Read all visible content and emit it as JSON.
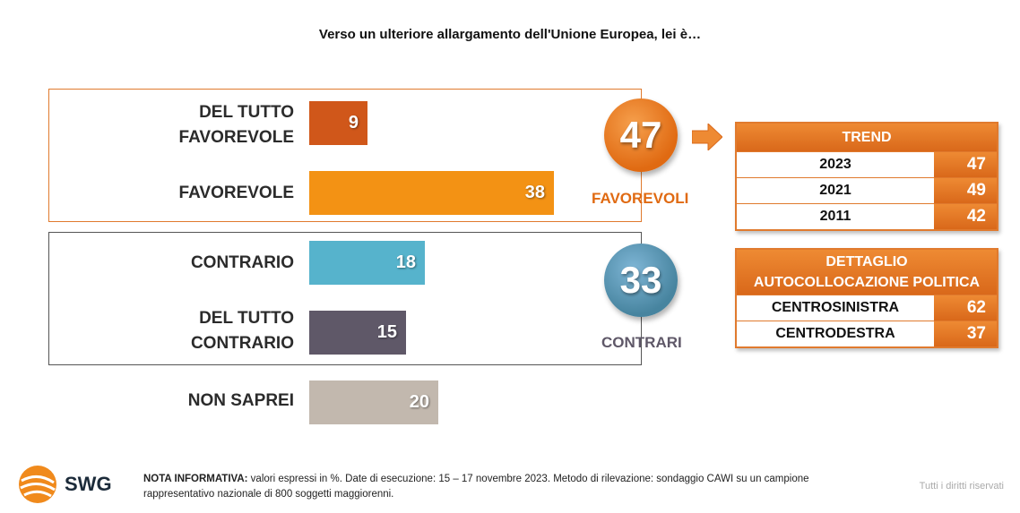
{
  "title": "Verso un ulteriore allargamento dell'Unione Europea, lei è…",
  "chart_data": {
    "type": "bar",
    "orientation": "horizontal",
    "categories": [
      "DEL TUTTO FAVOREVOLE",
      "FAVOREVOLE",
      "CONTRARIO",
      "DEL TUTTO CONTRARIO",
      "NON SAPREI"
    ],
    "values": [
      9,
      38,
      18,
      15,
      20
    ],
    "colors": [
      "#d0571a",
      "#f39214",
      "#56b3cc",
      "#5f5868",
      "#c2b8ae"
    ],
    "xlim": [
      0,
      38
    ]
  },
  "labels": {
    "cat1_line1": "DEL TUTTO",
    "cat1_line2": "FAVOREVOLE",
    "cat2": "FAVOREVOLE",
    "cat3": "CONTRARIO",
    "cat4_line1": "DEL TUTTO",
    "cat4_line2": "CONTRARIO",
    "cat5": "NON SAPREI"
  },
  "summary": {
    "favorevoli_value": "47",
    "favorevoli_label": "FAVOREVOLI",
    "favorevoli_color": "#e06a12",
    "contrari_value": "33",
    "contrari_label": "CONTRARI",
    "contrari_color": "#5f5868"
  },
  "trend": {
    "header": "TREND",
    "rows": [
      {
        "label": "2023",
        "value": "47"
      },
      {
        "label": "2021",
        "value": "49"
      },
      {
        "label": "2011",
        "value": "42"
      }
    ]
  },
  "dettaglio": {
    "header_line1": "DETTAGLIO",
    "header_line2": "AUTOCOLLOCAZIONE POLITICA",
    "rows": [
      {
        "label": "CENTROSINISTRA",
        "value": "62"
      },
      {
        "label": "CENTRODESTRA",
        "value": "37"
      }
    ]
  },
  "footer": {
    "logo_text": "SWG",
    "note_bold": "NOTA INFORMATIVA:",
    "note_text": " valori espressi in %. Date di esecuzione: 15 – 17 novembre 2023. Metodo di rilevazione: sondaggio CAWI su un campione rappresentativo nazionale di 800 soggetti maggiorenni.",
    "rights": "Tutti i diritti riservati"
  }
}
